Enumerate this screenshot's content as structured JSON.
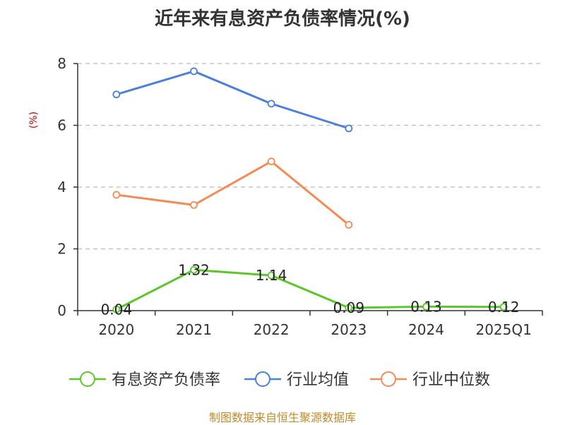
{
  "title": "近年来有息资产负债率情况(%)",
  "source": "制图数据来自恒生聚源数据库",
  "chart_data": {
    "type": "line",
    "title": "近年来有息资产负债率情况(%)",
    "ylabel": "(%)",
    "xlabel": "",
    "categories": [
      "2020",
      "2021",
      "2022",
      "2023",
      "2024",
      "2025Q1"
    ],
    "ylim": [
      0,
      8
    ],
    "yticks": [
      0,
      2,
      4,
      6,
      8
    ],
    "grid": true,
    "legend_position": "bottom",
    "series": [
      {
        "name": "有息资产负债率",
        "color": "#5cc72a",
        "values": [
          0.04,
          1.32,
          1.14,
          0.09,
          0.13,
          0.12
        ],
        "labels": [
          "0.04",
          "1.32",
          "1.14",
          "0.09",
          "0.13",
          "0.12"
        ]
      },
      {
        "name": "行业均值",
        "color": "#4a7fdc",
        "values": [
          7.0,
          7.75,
          6.7,
          5.9,
          null,
          null
        ]
      },
      {
        "name": "行业中位数",
        "color": "#f28b54",
        "values": [
          3.75,
          3.42,
          4.83,
          2.78,
          null,
          null
        ]
      }
    ]
  }
}
